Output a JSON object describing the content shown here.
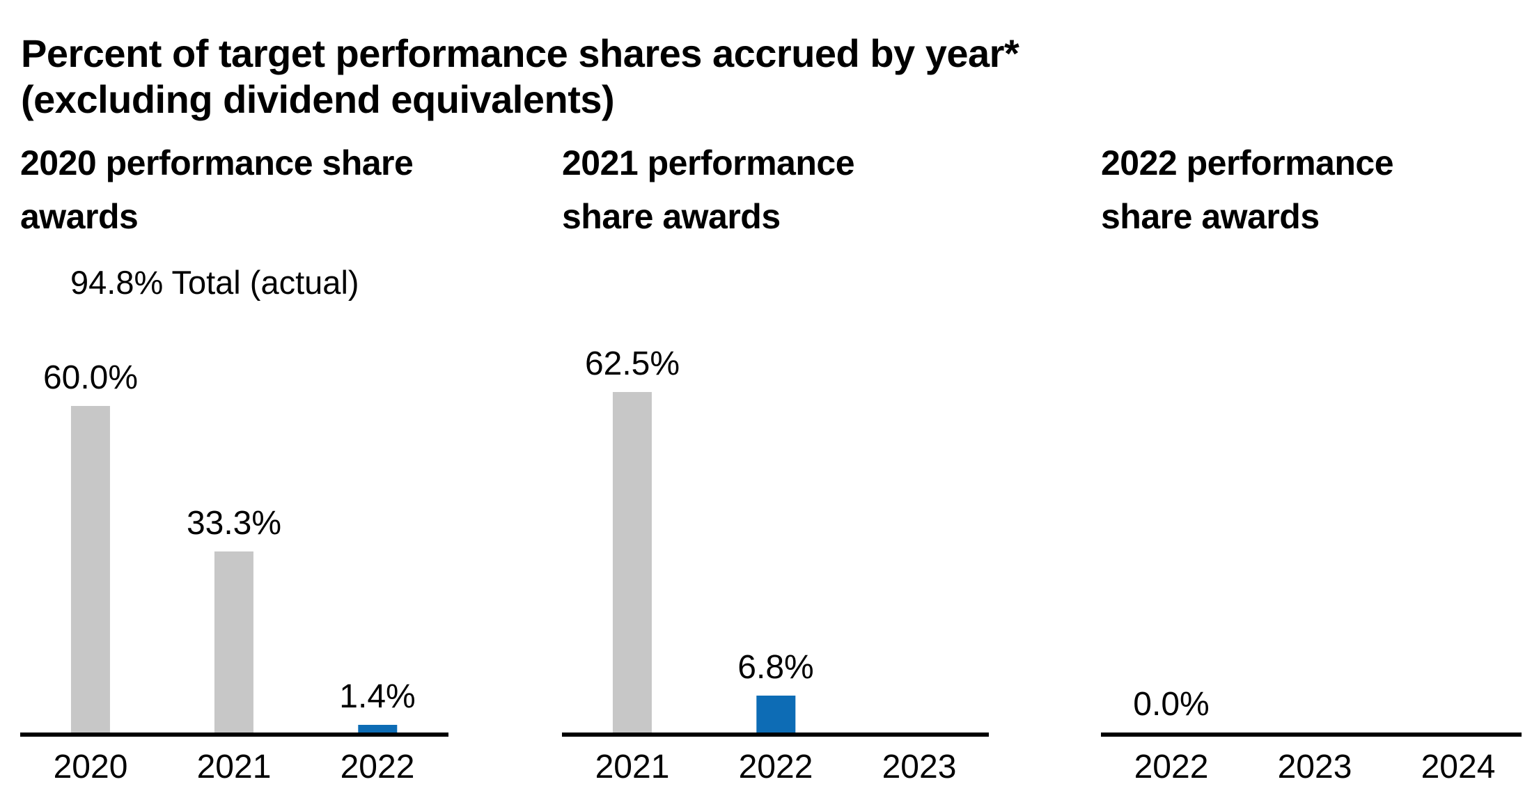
{
  "page_title": {
    "line1": "Percent of target performance shares accrued by year*",
    "line2": "(excluding dividend equivalents)"
  },
  "colors": {
    "bar_gray": "#c7c7c7",
    "bar_blue": "#0d6cb5",
    "axis": "#000000",
    "text": "#000000"
  },
  "chart_data": [
    {
      "type": "bar",
      "title": "2020 performance share awards",
      "title_lines": [
        "2020 performance share",
        "awards"
      ],
      "subtitle": "94.8% Total (actual)",
      "categories": [
        "2020",
        "2021",
        "2022"
      ],
      "values": [
        60.0,
        33.3,
        1.4
      ],
      "value_labels": [
        "60.0%",
        "33.3%",
        "1.4%"
      ],
      "bar_colors": [
        "gray",
        "gray",
        "blue"
      ],
      "xlabel": "",
      "ylabel": "",
      "ylim": [
        0,
        65
      ],
      "grid": false,
      "legend": "none"
    },
    {
      "type": "bar",
      "title": "2021 performance share awards",
      "title_lines": [
        "2021 performance",
        "share awards"
      ],
      "subtitle": "",
      "categories": [
        "2021",
        "2022",
        "2023"
      ],
      "values": [
        62.5,
        6.8,
        null
      ],
      "value_labels": [
        "62.5%",
        "6.8%",
        ""
      ],
      "bar_colors": [
        "gray",
        "blue",
        "none"
      ],
      "xlabel": "",
      "ylabel": "",
      "ylim": [
        0,
        65
      ],
      "grid": false,
      "legend": "none"
    },
    {
      "type": "bar",
      "title": "2022 performance share awards",
      "title_lines": [
        "2022 performance",
        "share awards"
      ],
      "subtitle": "",
      "categories": [
        "2022",
        "2023",
        "2024"
      ],
      "values": [
        0.0,
        null,
        null
      ],
      "value_labels": [
        "0.0%",
        "",
        ""
      ],
      "bar_colors": [
        "none",
        "none",
        "none"
      ],
      "xlabel": "",
      "ylabel": "",
      "ylim": [
        0,
        65
      ],
      "grid": false,
      "legend": "none"
    }
  ]
}
